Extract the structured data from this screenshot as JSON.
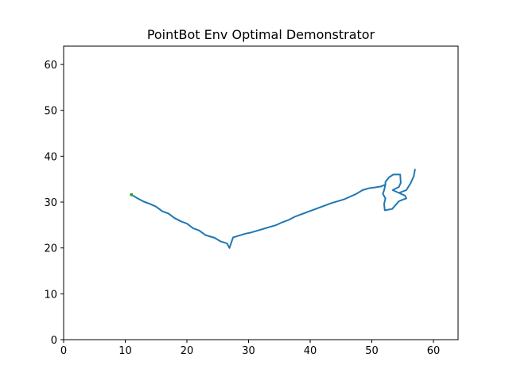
{
  "chart_data": {
    "type": "line",
    "title": "PointBot Env Optimal Demonstrator",
    "xlabel": "",
    "ylabel": "",
    "xlim": [
      0,
      64
    ],
    "ylim": [
      0,
      64
    ],
    "xticks": [
      0,
      10,
      20,
      30,
      40,
      50,
      60
    ],
    "yticks": [
      0,
      10,
      20,
      30,
      40,
      50,
      60
    ],
    "grid": false,
    "legend": "none",
    "series": [
      {
        "color": "#1f77b4",
        "points": [
          [
            26.9,
            20.0
          ],
          [
            26.5,
            21.0
          ],
          [
            25.5,
            21.4
          ],
          [
            24.5,
            22.2
          ],
          [
            23.0,
            22.8
          ],
          [
            22.0,
            23.8
          ],
          [
            21.0,
            24.3
          ],
          [
            20.0,
            25.3
          ],
          [
            19.0,
            25.8
          ],
          [
            18.0,
            26.5
          ],
          [
            17.0,
            27.5
          ],
          [
            16.0,
            28.0
          ],
          [
            15.0,
            29.0
          ],
          [
            14.0,
            29.6
          ],
          [
            13.0,
            30.1
          ],
          [
            12.0,
            30.8
          ],
          [
            11.0,
            31.6
          ]
        ]
      },
      {
        "color": "#1f77b4",
        "points": [
          [
            26.9,
            20.0
          ],
          [
            27.5,
            22.3
          ],
          [
            28.5,
            22.7
          ],
          [
            29.5,
            23.1
          ],
          [
            30.5,
            23.4
          ],
          [
            31.5,
            23.8
          ],
          [
            32.5,
            24.2
          ],
          [
            33.5,
            24.6
          ],
          [
            34.5,
            25.0
          ],
          [
            35.5,
            25.6
          ],
          [
            36.5,
            26.1
          ],
          [
            37.5,
            26.8
          ],
          [
            38.5,
            27.3
          ],
          [
            39.5,
            27.8
          ],
          [
            40.5,
            28.3
          ],
          [
            41.5,
            28.8
          ],
          [
            42.5,
            29.3
          ],
          [
            43.5,
            29.8
          ],
          [
            44.5,
            30.2
          ],
          [
            45.5,
            30.6
          ],
          [
            46.5,
            31.2
          ],
          [
            47.5,
            31.8
          ],
          [
            48.5,
            32.6
          ],
          [
            49.5,
            33.0
          ],
          [
            50.5,
            33.2
          ],
          [
            51.5,
            33.4
          ],
          [
            52.2,
            33.8
          ],
          [
            52.0,
            32.6
          ],
          [
            51.8,
            31.8
          ],
          [
            52.2,
            30.8
          ],
          [
            52.0,
            29.6
          ],
          [
            52.1,
            28.2
          ],
          [
            53.3,
            28.5
          ],
          [
            54.4,
            30.2
          ],
          [
            55.6,
            30.8
          ],
          [
            55.4,
            31.4
          ],
          [
            54.4,
            32.0
          ],
          [
            55.6,
            32.6
          ],
          [
            56.3,
            34.1
          ],
          [
            56.8,
            35.6
          ],
          [
            57.0,
            37.1
          ],
          [
            56.8,
            35.6
          ],
          [
            56.3,
            34.1
          ],
          [
            55.6,
            32.6
          ],
          [
            54.4,
            32.0
          ],
          [
            53.4,
            32.6
          ],
          [
            54.4,
            33.3
          ],
          [
            54.7,
            34.2
          ],
          [
            54.6,
            36.0
          ],
          [
            53.5,
            36.0
          ],
          [
            52.8,
            35.4
          ],
          [
            52.2,
            34.4
          ],
          [
            52.2,
            33.8
          ]
        ]
      }
    ],
    "start_point": {
      "x": 11.0,
      "y": 31.6,
      "color": "#2ca02c"
    }
  }
}
